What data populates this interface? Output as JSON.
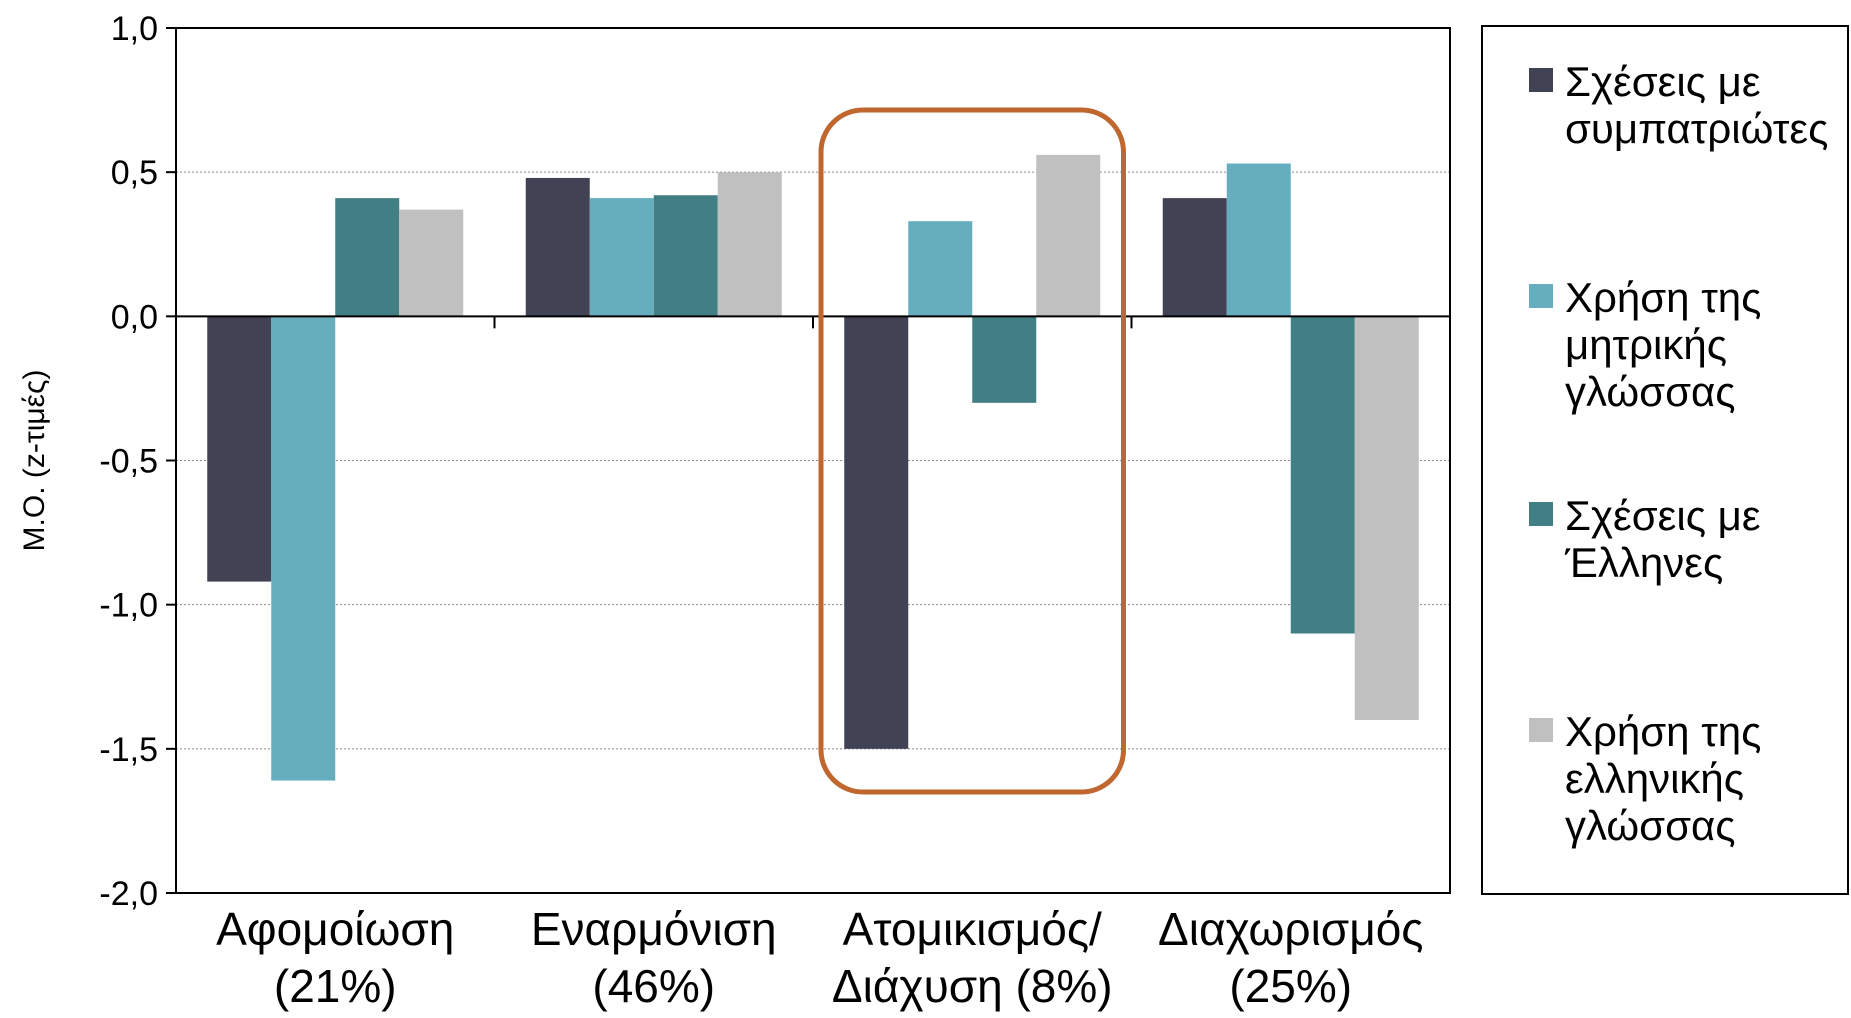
{
  "chart_data": {
    "type": "bar",
    "ylabel": "Μ.Ο. (z-τιμές)",
    "ylim": [
      -2.0,
      1.0
    ],
    "yticks": [
      {
        "value": 1.0,
        "label": "1,0"
      },
      {
        "value": 0.5,
        "label": "0,5"
      },
      {
        "value": 0.0,
        "label": "0,0"
      },
      {
        "value": -0.5,
        "label": "-0,5"
      },
      {
        "value": -1.0,
        "label": "-1,0"
      },
      {
        "value": -1.5,
        "label": "-1,5"
      },
      {
        "value": -2.0,
        "label": "-2,0"
      }
    ],
    "grid": true,
    "legend_position": "right",
    "categories": [
      {
        "lines": [
          "Αφομοίωση",
          "(21%)"
        ]
      },
      {
        "lines": [
          "Εναρμόνιση",
          "(46%)"
        ]
      },
      {
        "lines": [
          "Ατομικισμός/",
          "Διάχυση (8%)"
        ]
      },
      {
        "lines": [
          "Διαχωρισμός",
          "(25%)"
        ]
      }
    ],
    "series": [
      {
        "name": "Σχέσεις με συμπατριώτες",
        "legend_lines": [
          "Σχέσεις με",
          "συμπατριώτες"
        ],
        "color": "#414253",
        "values": [
          -0.92,
          0.48,
          -1.5,
          0.41
        ]
      },
      {
        "name": "Χρήση της μητρικής γλώσσας",
        "legend_lines": [
          "Χρήση της",
          "μητρικής",
          "γλώσσας"
        ],
        "color": "#66AEBE",
        "values": [
          -1.61,
          0.41,
          0.33,
          0.53
        ]
      },
      {
        "name": "Σχέσεις με Έλληνες",
        "legend_lines": [
          "Σχέσεις με",
          "Έλληνες"
        ],
        "color": "#417F84",
        "values": [
          0.41,
          0.42,
          -0.3,
          -1.1
        ]
      },
      {
        "name": "Χρήση της ελληνικής γλώσσας",
        "legend_lines": [
          "Χρήση της",
          "ελληνικής",
          "γλώσσας"
        ],
        "color": "#C0C0C1",
        "values": [
          0.37,
          0.5,
          0.56,
          -1.4
        ]
      }
    ],
    "annotation": {
      "type": "rounded-rectangle",
      "around_category": 2,
      "color": "#C0672F"
    }
  }
}
